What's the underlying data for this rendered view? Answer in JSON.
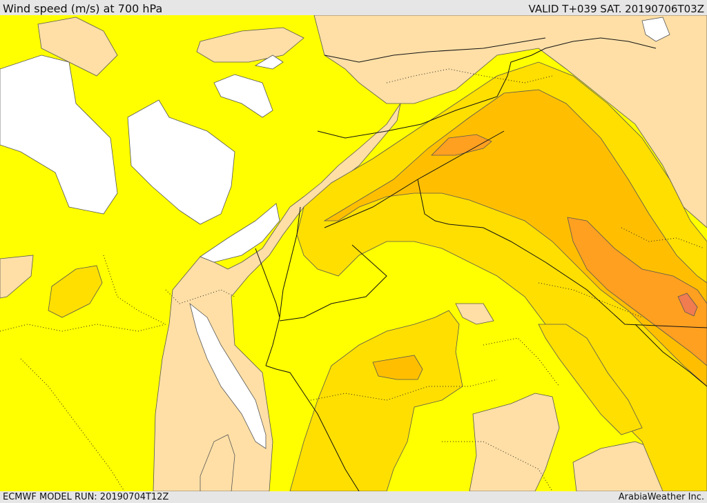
{
  "header": {
    "title": "Wind speed (m/s) at 700 hPa",
    "valid": "VALID T+039 SAT. 20190706T03Z"
  },
  "footer": {
    "model_run": "ECMWF MODEL RUN: 20190704T12Z",
    "credit": "ArabiaWeather Inc."
  },
  "map": {
    "colors": {
      "calm": "#ffffff",
      "low": "#ffdfa6",
      "mid": "#ffff00",
      "moderate": "#ffdf00",
      "strong": "#ffbf00",
      "stronger": "#ffa020",
      "strongest": "#f07c50"
    }
  }
}
